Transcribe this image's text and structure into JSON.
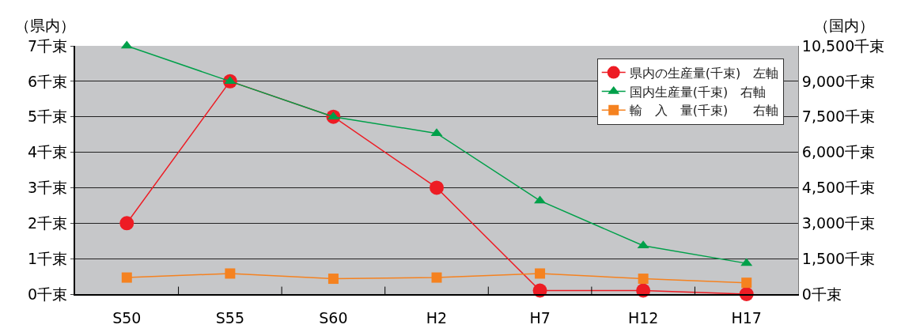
{
  "chart_data": {
    "type": "line",
    "ylabel": "（県内）",
    "y2label": "（国内）",
    "categories": [
      "S50",
      "S55",
      "S60",
      "H2",
      "H7",
      "H12",
      "H17"
    ],
    "series": [
      {
        "name": "県内の生産量(千束)　左軸",
        "color": "#ed1c24",
        "marker": "circle",
        "values": [
          2,
          6,
          5,
          3,
          0.1,
          0.1,
          0
        ]
      },
      {
        "name": "国内生産量(千束)　右軸",
        "color": "#00a04a",
        "marker": "triangle",
        "axis": "y2",
        "values": [
          10500,
          9000,
          7500,
          6800,
          3950,
          2050,
          1300
        ]
      },
      {
        "name": "輸　入　量(千束)　　右軸",
        "color": "#f58220",
        "marker": "square",
        "axis": "y2",
        "values": [
          700,
          870,
          650,
          700,
          870,
          650,
          480
        ]
      }
    ],
    "ylim": [
      0,
      7
    ],
    "yticks": [
      {
        "value": 0,
        "label": "0千束"
      },
      {
        "value": 1,
        "label": "1千束"
      },
      {
        "value": 2,
        "label": "2千束"
      },
      {
        "value": 3,
        "label": "3千束"
      },
      {
        "value": 4,
        "label": "4千束"
      },
      {
        "value": 5,
        "label": "5千束"
      },
      {
        "value": 6,
        "label": "6千束"
      },
      {
        "value": 7,
        "label": "7千束"
      }
    ],
    "y2lim": [
      0,
      10500
    ],
    "y2ticks": [
      {
        "value": 0,
        "label": "0千束"
      },
      {
        "value": 1500,
        "label": "1,500千束"
      },
      {
        "value": 3000,
        "label": "3,000千束"
      },
      {
        "value": 4500,
        "label": "4,500千束"
      },
      {
        "value": 6000,
        "label": "6,000千束"
      },
      {
        "value": 7500,
        "label": "7,500千束"
      },
      {
        "value": 9000,
        "label": "9,000千束"
      },
      {
        "value": 10500,
        "label": "10,500千束"
      }
    ],
    "grid": "y",
    "legend": "top right",
    "line_style": "solid"
  }
}
